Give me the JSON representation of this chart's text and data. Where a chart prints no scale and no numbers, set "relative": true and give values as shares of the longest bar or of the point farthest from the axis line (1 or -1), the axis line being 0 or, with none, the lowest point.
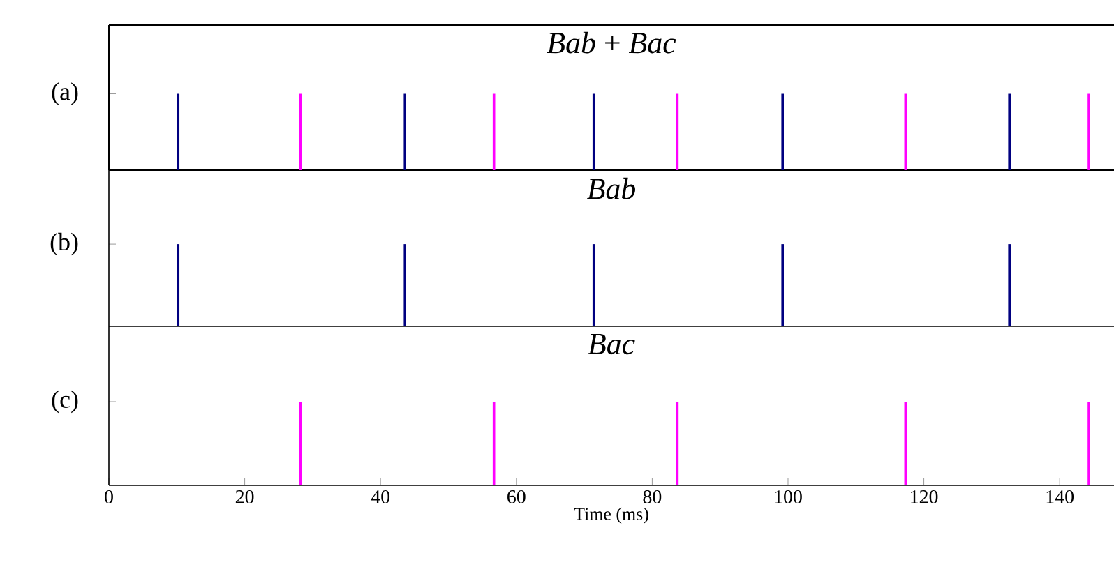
{
  "chart_data": [
    {
      "type": "bar",
      "title": "*Bab* + *Bac*",
      "ylabel": "(a)",
      "relative": true,
      "xlim": [
        0,
        148
      ],
      "xticks": [
        0,
        20,
        40,
        60,
        80,
        100,
        120,
        140
      ],
      "tick_labels": false,
      "series": [
        {
          "color": "#000080",
          "x": [
            10.2,
            43.6,
            71.4,
            99.2,
            132.6
          ],
          "values": [
            1,
            1,
            1,
            1,
            1
          ]
        },
        {
          "color": "#ff00ff",
          "x": [
            28.2,
            56.7,
            83.7,
            117.3,
            144.3
          ],
          "values": [
            1,
            1,
            1,
            1,
            1
          ]
        }
      ]
    },
    {
      "type": "bar",
      "title": "*Bab*",
      "ylabel": "(b)",
      "relative": true,
      "xlim": [
        0,
        148
      ],
      "xticks": [
        0,
        20,
        40,
        60,
        80,
        100,
        120,
        140
      ],
      "tick_labels": false,
      "series": [
        {
          "color": "#000080",
          "x": [
            10.2,
            43.6,
            71.4,
            99.2,
            132.6
          ],
          "values": [
            1,
            1,
            1,
            1,
            1
          ]
        }
      ]
    },
    {
      "type": "bar",
      "title": "*Bac*",
      "ylabel": "(c)",
      "xlabel": "Time (ms)",
      "relative": true,
      "xlim": [
        0,
        148
      ],
      "xticks": [
        0,
        20,
        40,
        60,
        80,
        100,
        120,
        140
      ],
      "tick_labels": "x",
      "series": [
        {
          "color": "#ff00ff",
          "x": [
            28.2,
            56.7,
            83.7,
            117.3,
            144.3
          ],
          "values": [
            1,
            1,
            1,
            1,
            1
          ]
        }
      ]
    }
  ]
}
